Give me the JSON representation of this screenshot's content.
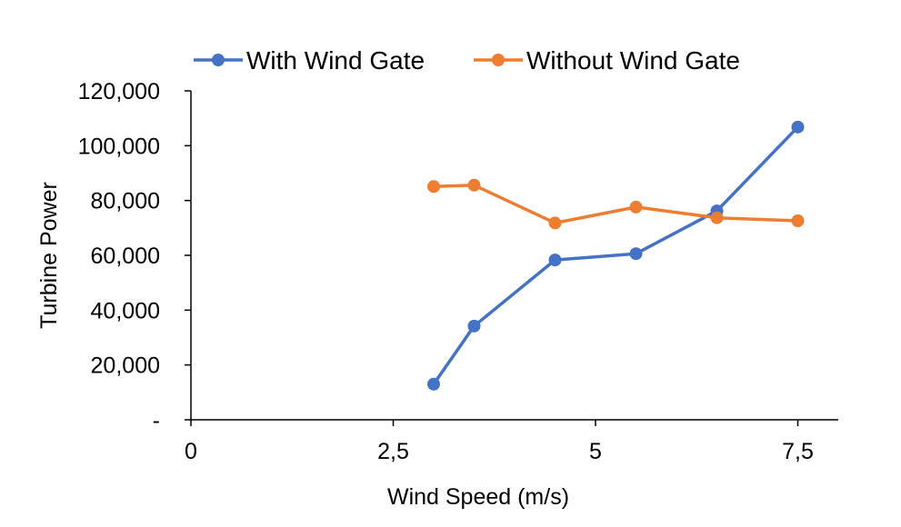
{
  "chart_data": {
    "type": "line",
    "title": "",
    "xlabel": "Wind Speed (m/s)",
    "ylabel": "Turbine Power",
    "xlim": [
      0,
      8
    ],
    "ylim": [
      0,
      120000
    ],
    "x_ticks": [
      0,
      2.5,
      5,
      7.5
    ],
    "x_tick_labels": [
      "0",
      "2,5",
      "5",
      "7,5"
    ],
    "y_ticks": [
      0,
      20000,
      40000,
      60000,
      80000,
      100000,
      120000
    ],
    "y_tick_labels": [
      "-",
      "20,000",
      "40,000",
      "60,000",
      "80,000",
      "100,000",
      "120,000"
    ],
    "grid": false,
    "legend_position": "top",
    "series": [
      {
        "name": "With Wind Gate",
        "color": "#4472C4",
        "points": [
          {
            "x": 3.0,
            "y": 13000
          },
          {
            "x": 3.5,
            "y": 34200
          },
          {
            "x": 4.5,
            "y": 58300
          },
          {
            "x": 5.5,
            "y": 60600
          },
          {
            "x": 6.5,
            "y": 76200
          },
          {
            "x": 7.5,
            "y": 106800
          }
        ]
      },
      {
        "name": "Without Wind Gate",
        "color": "#ED7D31",
        "points": [
          {
            "x": 3.0,
            "y": 85100
          },
          {
            "x": 3.5,
            "y": 85600
          },
          {
            "x": 4.5,
            "y": 71800
          },
          {
            "x": 5.5,
            "y": 77600
          },
          {
            "x": 6.5,
            "y": 73700
          },
          {
            "x": 7.5,
            "y": 72600
          }
        ]
      }
    ]
  }
}
